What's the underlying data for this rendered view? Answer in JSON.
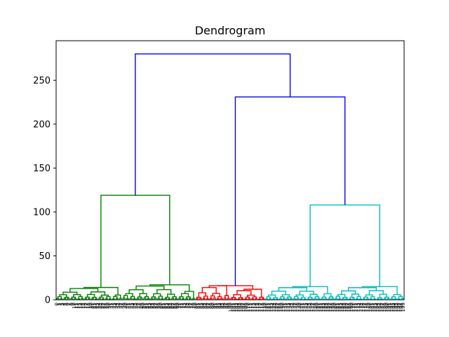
{
  "chart_data": {
    "type": "dendrogram",
    "title": "Dendrogram",
    "xlabel": "",
    "ylabel": "",
    "ylim": [
      0,
      295
    ],
    "y_ticks": [
      0,
      50,
      100,
      150,
      200,
      250
    ],
    "leaf_count": 200,
    "colors": {
      "cluster_1": "#008000",
      "cluster_2": "#ff0000",
      "cluster_3": "#00bfbf",
      "above_threshold": "#0000ff"
    },
    "clusters": [
      {
        "color": "cluster_1",
        "leaves": 80,
        "merge_height": 119,
        "sub_merges": [
          {
            "leaves": 38,
            "height": 14
          },
          {
            "leaves": 42,
            "height": 17
          }
        ]
      },
      {
        "color": "cluster_2",
        "leaves": 40,
        "merge_height": 16,
        "sub_merges": [
          {
            "leaves": 20,
            "height": 16
          },
          {
            "leaves": 20,
            "height": 12
          }
        ]
      },
      {
        "color": "cluster_3",
        "leaves": 80,
        "merge_height": 108,
        "sub_merges": [
          {
            "leaves": 40,
            "height": 15
          },
          {
            "leaves": 40,
            "height": 15
          }
        ]
      }
    ],
    "top_merges": [
      {
        "joins": [
          "cluster_2",
          "cluster_3"
        ],
        "height": 231
      },
      {
        "joins": [
          "cluster_1",
          "cluster_2+cluster_3"
        ],
        "height": 280
      }
    ]
  }
}
